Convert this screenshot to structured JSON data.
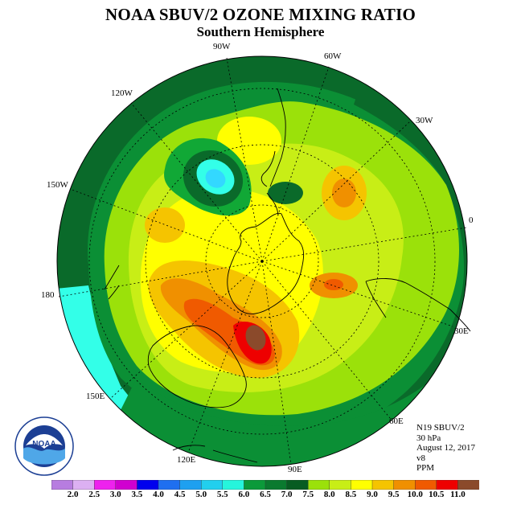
{
  "title": "NOAA SBUV/2 OZONE MIXING RATIO",
  "subtitle": "Southern Hemisphere",
  "longitude_labels": [
    "90W",
    "60W",
    "30W",
    "0",
    "30E",
    "60E",
    "90E",
    "120E",
    "150E",
    "180",
    "150W",
    "120W"
  ],
  "info": {
    "satellite": "N19 SBUV/2",
    "level": "30 hPa",
    "date": "August 12, 2017",
    "version": "v8",
    "units": "PPM"
  },
  "logo": {
    "text": "NOAA"
  },
  "colorbar": {
    "labels": [
      "2.0",
      "2.5",
      "3.0",
      "3.5",
      "4.0",
      "4.5",
      "5.0",
      "5.5",
      "6.0",
      "6.5",
      "7.0",
      "7.5",
      "8.0",
      "8.5",
      "9.0",
      "9.5",
      "10.0",
      "10.5",
      "11.0"
    ],
    "colors": [
      "#b77de0",
      "#dcb0f2",
      "#ee22ee",
      "#d000d0",
      "#0000ee",
      "#1f6ff0",
      "#1ea0f0",
      "#22cfee",
      "#26f5dc",
      "#0b9a3a",
      "#0a7a2f",
      "#075c22",
      "#9be10a",
      "#c8ee16",
      "#ffff00",
      "#f5c400",
      "#f09000",
      "#f05a00",
      "#ee0000",
      "#8b4a2b"
    ]
  },
  "map_colors": {
    "cyan": "#33ffe8",
    "dark_green": "#0a6a2a",
    "mid_green": "#0b8f35",
    "green": "#11a836",
    "lime": "#9be10a",
    "yellow_green": "#c8ee16",
    "yellow": "#ffff00",
    "gold": "#f5c400",
    "orange": "#f09000",
    "dark_orange": "#f05a00",
    "red": "#ee0000",
    "brown": "#8b4a2b",
    "light_blue": "#33d8ff"
  }
}
